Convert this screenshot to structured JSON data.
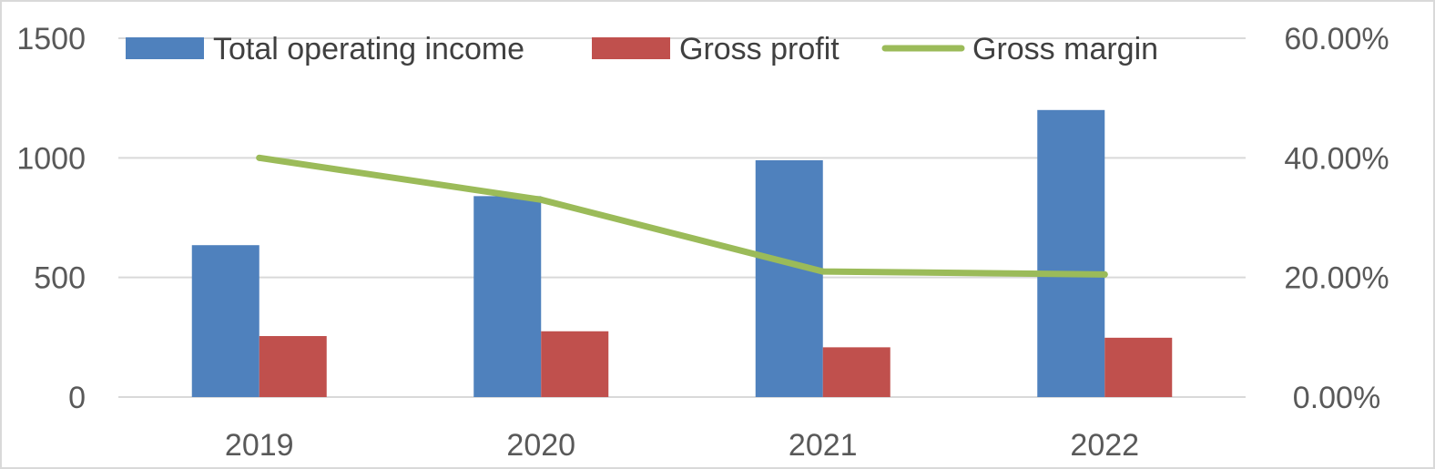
{
  "chart_data": {
    "type": "bar",
    "title": "",
    "categories": [
      "2019",
      "2020",
      "2021",
      "2022"
    ],
    "series": [
      {
        "name": "Total operating income",
        "type": "bar",
        "axis": "left",
        "color": "#4f81bd",
        "values": [
          635,
          840,
          990,
          1200
        ]
      },
      {
        "name": "Gross profit",
        "type": "bar",
        "axis": "left",
        "color": "#c0504d",
        "values": [
          255,
          275,
          208,
          248
        ]
      },
      {
        "name": "Gross margin",
        "type": "line",
        "axis": "right",
        "color": "#9bbb59",
        "values": [
          0.4,
          0.33,
          0.21,
          0.205
        ]
      }
    ],
    "y_left": {
      "min": 0,
      "max": 1500,
      "ticks": [
        "0",
        "500",
        "1000",
        "1500"
      ]
    },
    "y_right": {
      "min": 0,
      "max": 0.6,
      "ticks": [
        "0.00%",
        "20.00%",
        "40.00%",
        "60.00%"
      ]
    },
    "grid": true,
    "legend_position": "top"
  }
}
